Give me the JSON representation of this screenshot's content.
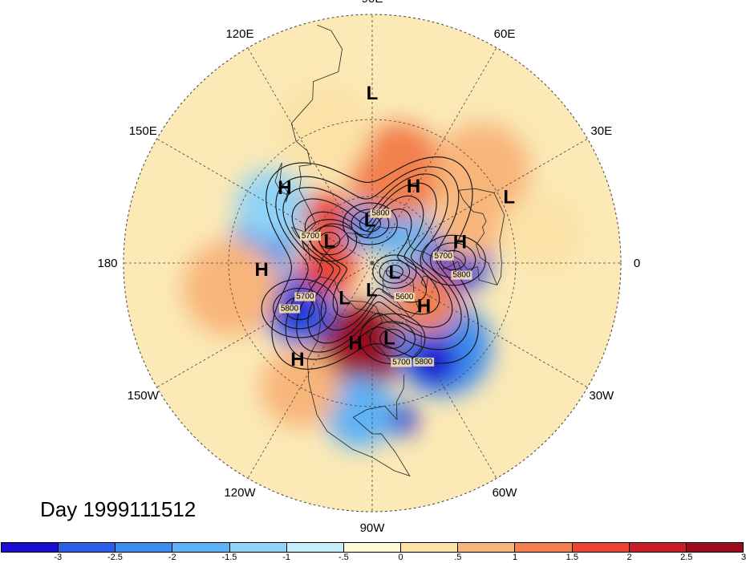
{
  "map": {
    "projection": "north-polar-stereographic",
    "date_label": "Day 1999111512",
    "lon_labels": [
      {
        "text": "90E",
        "lon": 90
      },
      {
        "text": "60E",
        "lon": 60
      },
      {
        "text": "30E",
        "lon": 30
      },
      {
        "text": "0",
        "lon": 0
      },
      {
        "text": "30W",
        "lon": -30
      },
      {
        "text": "60W",
        "lon": -60
      },
      {
        "text": "90W",
        "lon": -90
      },
      {
        "text": "120W",
        "lon": -120
      },
      {
        "text": "150W",
        "lon": -150
      },
      {
        "text": "180",
        "lon": 180
      },
      {
        "text": "150E",
        "lon": 150
      },
      {
        "text": "120E",
        "lon": 120
      }
    ],
    "pressure_centers": [
      {
        "type": "L",
        "lon": 90,
        "lat": 21
      },
      {
        "type": "H",
        "lon": 62,
        "lat": 51
      },
      {
        "type": "L",
        "lon": 26,
        "lat": 27
      },
      {
        "type": "H",
        "lon": 14,
        "lat": 50
      },
      {
        "type": "L",
        "lon": 93,
        "lat": 70
      },
      {
        "type": "H",
        "lon": 139,
        "lat": 40
      },
      {
        "type": "L",
        "lon": 152,
        "lat": 68
      },
      {
        "type": "L",
        "lon": -21,
        "lat": 79
      },
      {
        "type": "H",
        "lon": -177,
        "lat": 42
      },
      {
        "type": "L",
        "lon": -129,
        "lat": 70
      },
      {
        "type": "L",
        "lon": -91,
        "lat": 78
      },
      {
        "type": "H",
        "lon": -39,
        "lat": 60
      },
      {
        "type": "H",
        "lon": -102,
        "lat": 54
      },
      {
        "type": "L",
        "lon": -77,
        "lat": 56
      },
      {
        "type": "H",
        "lon": -128,
        "lat": 38
      }
    ],
    "contour_labels": [
      {
        "text": "5700",
        "lon": 158,
        "lat": 60
      },
      {
        "text": "5700",
        "lon": -152,
        "lat": 56
      },
      {
        "text": "5800",
        "lon": -150,
        "lat": 48
      },
      {
        "text": "5700",
        "lon": -74,
        "lat": 44
      },
      {
        "text": "5800",
        "lon": -63,
        "lat": 41
      },
      {
        "text": "5600",
        "lon": -48,
        "lat": 68
      },
      {
        "text": "5700",
        "lon": 4,
        "lat": 58
      },
      {
        "text": "5800",
        "lon": -9,
        "lat": 50
      },
      {
        "text": "5800",
        "lon": 80,
        "lat": 68
      }
    ],
    "anomaly_blobs": [
      {
        "lon": -98,
        "lat": 52,
        "r": 55,
        "c": 2.8
      },
      {
        "lon": -100,
        "lat": 48,
        "r": 30,
        "c": 3.0
      },
      {
        "lon": -50,
        "lat": 42,
        "r": 60,
        "c": -2.2
      },
      {
        "lon": -58,
        "lat": 40,
        "r": 30,
        "c": -2.8
      },
      {
        "lon": -80,
        "lat": 25,
        "r": 20,
        "c": -2.9
      },
      {
        "lon": -95,
        "lat": 28,
        "r": 45,
        "c": -1.5
      },
      {
        "lon": -148,
        "lat": 52,
        "r": 45,
        "c": -2.6
      },
      {
        "lon": -150,
        "lat": 50,
        "r": 22,
        "c": -3.0
      },
      {
        "lon": 170,
        "lat": 42,
        "r": 40,
        "c": -2.0
      },
      {
        "lon": 5,
        "lat": 52,
        "r": 45,
        "c": -2.4
      },
      {
        "lon": -4,
        "lat": 53,
        "r": 25,
        "c": -2.9
      },
      {
        "lon": 60,
        "lat": 68,
        "r": 40,
        "c": -1.5
      },
      {
        "lon": 100,
        "lat": 72,
        "r": 30,
        "c": -2.2
      },
      {
        "lon": -30,
        "lat": 72,
        "r": 30,
        "c": -2.0
      },
      {
        "lon": -35,
        "lat": 60,
        "r": 40,
        "c": 1.5
      },
      {
        "lon": 135,
        "lat": 60,
        "r": 30,
        "c": 2.0
      },
      {
        "lon": 75,
        "lat": 48,
        "r": 60,
        "c": 1.3
      },
      {
        "lon": 40,
        "lat": 30,
        "r": 60,
        "c": 1.2
      },
      {
        "lon": 20,
        "lat": 45,
        "r": 40,
        "c": 1.2
      },
      {
        "lon": -175,
        "lat": 70,
        "r": 35,
        "c": 1.8
      },
      {
        "lon": 150,
        "lat": 40,
        "r": 45,
        "c": -1.2
      },
      {
        "lon": -120,
        "lat": 30,
        "r": 50,
        "c": 0.8
      },
      {
        "lon": -170,
        "lat": 30,
        "r": 60,
        "c": 0.8
      },
      {
        "lon": 10,
        "lat": 20,
        "r": 50,
        "c": 0.6
      },
      {
        "lon": 110,
        "lat": 30,
        "r": 60,
        "c": 0.7
      }
    ],
    "colorbar": {
      "colors": [
        "#1a0fd1",
        "#2c5fe6",
        "#3c8cef",
        "#5fb1f5",
        "#8fd3f7",
        "#c6eef9",
        "#fdf8d6",
        "#fbe3a8",
        "#f8b57a",
        "#f2804e",
        "#e74432",
        "#c81d26",
        "#9b0d1e"
      ],
      "tick_labels": [
        "-3",
        "-2.5",
        "-2",
        "-1.5",
        "-1",
        "-.5",
        "0",
        ".5",
        "1",
        "1.5",
        "2",
        "2.5",
        "3"
      ]
    }
  }
}
